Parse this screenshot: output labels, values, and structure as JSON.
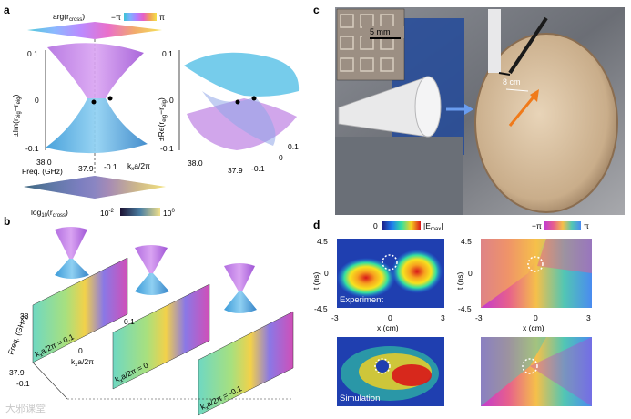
{
  "panel_letters": {
    "a": "a",
    "b": "b",
    "c": "c",
    "d": "d"
  },
  "panel_a": {
    "arg_label": "arg(r",
    "arg_sub": "cross",
    "arg_close": ")",
    "phase_min": "−π",
    "phase_max": "π",
    "y_tick_top": "0.1",
    "y_tick_mid": "0",
    "y_tick_bot": "-0.1",
    "ylabel_left": "±Im(r",
    "ylabel_left_sub": "eig",
    "ylabel_left_mid": "−r",
    "ylabel_left_sub2": "eig",
    "ylabel_left_close": ")",
    "ylabel_right": "±Re(r",
    "ylabel_right_sub": "eig",
    "ylabel_right_mid": "−r",
    "ylabel_right_sub2": "eig",
    "ylabel_right_close": ")",
    "freq_tick_38": "38.0",
    "freq_tick_379": "37.9",
    "kx_tick_neg": "-0.1",
    "kx_tick_0": "0",
    "kx_tick_pos": "0.1",
    "freq_label": "Freq. (GHz)",
    "kx_label": "k",
    "kx_sub": "x",
    "kx_rest": "a/2π",
    "log_label": "log",
    "log_sub": "10",
    "log_mid": "(r",
    "log_sub2": "cross",
    "log_close": ")",
    "cbar_min": "10",
    "cbar_min_exp": "-2",
    "cbar_max": "10",
    "cbar_max_exp": "0"
  },
  "panel_b": {
    "freq_label": "Freq. (GHz)",
    "freq_38": "38",
    "freq_379": "37.9",
    "kx_neg": "-0.1",
    "kx_0": "0",
    "kx_pos": "0.1",
    "kx_axis": "k",
    "kx_axis_sub": "x",
    "kx_axis_rest": "a/2π",
    "plane1": "k",
    "plane1_sub": "x",
    "plane1_rest": "a/2π = 0.1",
    "plane2": "k",
    "plane2_sub": "x",
    "plane2_rest": "a/2π = 0",
    "plane3": "k",
    "plane3_sub": "x",
    "plane3_rest": "a/2π = -0.1"
  },
  "panel_c": {
    "scale_bar": "5 mm",
    "distance": "8 cm"
  },
  "panel_d": {
    "amp_min": "0",
    "amp_max": "|E",
    "amp_max_sub": "max",
    "amp_close": "|",
    "phase_min": "−π",
    "phase_max": "π",
    "t_ticks": [
      "4.5",
      "0",
      "-4.5"
    ],
    "x_ticks": [
      "-3",
      "0",
      "3"
    ],
    "t_label": "t (ns)",
    "x_label": "x (cm)",
    "experiment_label": "Experiment",
    "simulation_label": "Simulation"
  },
  "watermark": "大邪课堂"
}
